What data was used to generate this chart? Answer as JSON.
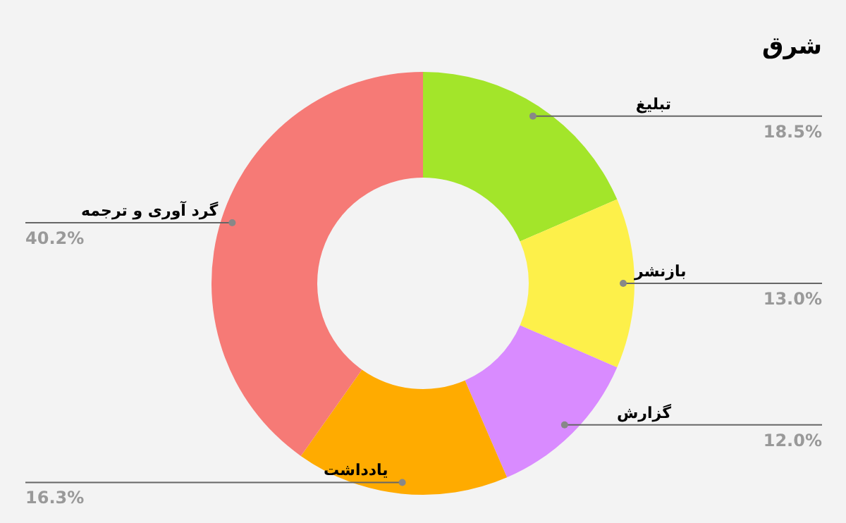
{
  "chart_data": {
    "type": "donut",
    "title": "شرق",
    "categories": [
      "تبلیغ",
      "بازنشر",
      "گزارش",
      "یادداشت",
      "گرد آوری و ترجمه"
    ],
    "values": [
      18.5,
      13.0,
      12.0,
      16.3,
      40.2
    ],
    "colors": [
      "#a3e52a",
      "#fdf04a",
      "#d98bff",
      "#ffab00",
      "#f67a76"
    ],
    "value_labels": [
      "18.5%",
      "13.0%",
      "12.0%",
      "16.3%",
      "40.2%"
    ]
  }
}
